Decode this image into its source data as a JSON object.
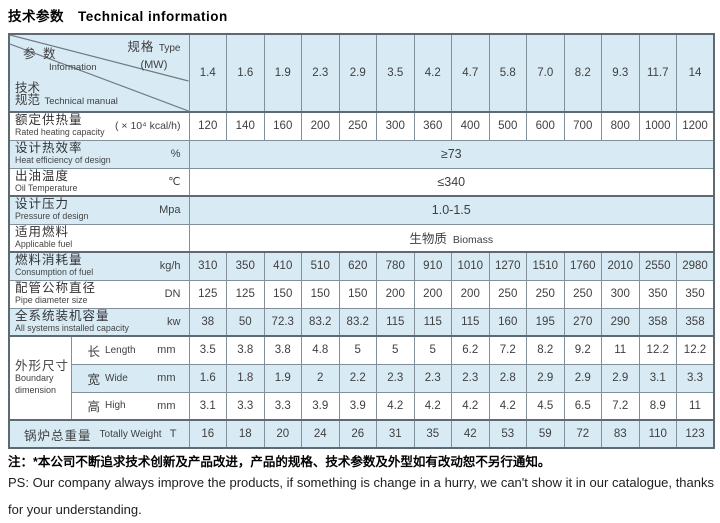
{
  "title": {
    "zh": "技术参数",
    "en": "Technical information"
  },
  "table": {
    "corner": {
      "spec_zh": "规格",
      "spec_en": "Type",
      "spec_unit": "(MW)",
      "param_zh": "参 数",
      "param_en": "Information",
      "tech_zh_line1": "技术",
      "tech_zh_line2": "规范",
      "tech_en": "Technical manual"
    },
    "types": [
      "1.4",
      "1.6",
      "1.9",
      "2.3",
      "2.9",
      "3.5",
      "4.2",
      "4.7",
      "5.8",
      "7.0",
      "8.2",
      "9.3",
      "11.7",
      "14"
    ],
    "rows": [
      {
        "id": "rated-heating-capacity",
        "zh": "额定供热量",
        "en": "Rated heating capacity",
        "unit": "( × 10⁴ kcal/h)",
        "values": [
          "120",
          "140",
          "160",
          "200",
          "250",
          "300",
          "360",
          "400",
          "500",
          "600",
          "700",
          "800",
          "1000",
          "1200"
        ]
      },
      {
        "id": "heat-efficiency",
        "zh": "设计热效率",
        "en": "Heat efficiency of design",
        "unit": "%",
        "merged": "≥73"
      },
      {
        "id": "oil-temperature",
        "zh": "出油温度",
        "en": "Oil Temperature",
        "unit": "℃",
        "merged": "≤340"
      },
      {
        "id": "design-pressure",
        "zh": "设计压力",
        "en": "Pressure of design",
        "unit": "Mpa",
        "merged": "1.0-1.5",
        "thick_top": true
      },
      {
        "id": "applicable-fuel",
        "zh": "适用燃料",
        "en": "Applicable fuel",
        "unit": "",
        "merged_zh": "生物质",
        "merged_en": "Biomass"
      },
      {
        "id": "fuel-consumption",
        "zh": "燃料消耗量",
        "en": "Consumption of fuel",
        "unit": "kg/h",
        "values": [
          "310",
          "350",
          "410",
          "510",
          "620",
          "780",
          "910",
          "1010",
          "1270",
          "1510",
          "1760",
          "2010",
          "2550",
          "2980"
        ],
        "thick_top": true
      },
      {
        "id": "pipe-diameter",
        "zh": "配管公称直径",
        "en": "Pipe diameter size",
        "unit": "DN",
        "values": [
          "125",
          "125",
          "150",
          "150",
          "150",
          "200",
          "200",
          "200",
          "250",
          "250",
          "250",
          "300",
          "350",
          "350"
        ]
      },
      {
        "id": "installed-capacity",
        "zh": "全系统装机容量",
        "en": "All systems installed capacity",
        "unit": "kw",
        "values": [
          "38",
          "50",
          "72.3",
          "83.2",
          "83.2",
          "115",
          "115",
          "115",
          "160",
          "195",
          "270",
          "290",
          "358",
          "358"
        ]
      },
      {
        "id": "boundary-length",
        "boundary": true,
        "zh": "长",
        "en": "Length",
        "unit": "mm",
        "values": [
          "3.5",
          "3.8",
          "3.8",
          "4.8",
          "5",
          "5",
          "5",
          "6.2",
          "7.2",
          "8.2",
          "9.2",
          "11",
          "12.2",
          "12.2"
        ],
        "thick_top": true
      },
      {
        "id": "boundary-wide",
        "boundary": true,
        "zh": "宽",
        "en": "Wide",
        "unit": "mm",
        "values": [
          "1.6",
          "1.8",
          "1.9",
          "2",
          "2.2",
          "2.3",
          "2.3",
          "2.3",
          "2.8",
          "2.9",
          "2.9",
          "2.9",
          "3.1",
          "3.3"
        ]
      },
      {
        "id": "boundary-high",
        "boundary": true,
        "zh": "高",
        "en": "High",
        "unit": "mm",
        "values": [
          "3.1",
          "3.3",
          "3.3",
          "3.9",
          "3.9",
          "4.2",
          "4.2",
          "4.2",
          "4.2",
          "4.5",
          "6.5",
          "7.2",
          "8.9",
          "11"
        ]
      },
      {
        "id": "total-weight",
        "inline": true,
        "zh": "锅炉总重量",
        "en": "Totally Weight",
        "unit": "T",
        "values": [
          "16",
          "18",
          "20",
          "24",
          "26",
          "31",
          "35",
          "42",
          "53",
          "59",
          "72",
          "83",
          "110",
          "123"
        ],
        "thick_top": true
      }
    ],
    "boundary_group": {
      "zh": "外形尺寸",
      "en_line1": "Boundary",
      "en_line2": "dimension"
    }
  },
  "notes": {
    "zh": "注：*本公司不断追求技术创新及产品改进，产品的规格、技术参数及外型如有改动恕不另行通知。",
    "en": "PS: Our company always improve the products, if something is change in a hurry, we can't show it in our catalogue, thanks for your understanding."
  }
}
